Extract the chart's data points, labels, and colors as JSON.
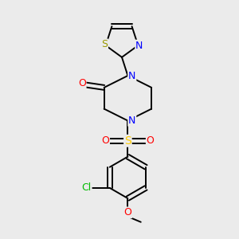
{
  "background_color": "#ebebeb",
  "bond_color": "#000000",
  "atom_colors": {
    "N": "#0000ff",
    "O": "#ff0000",
    "S_thiazole": "#999900",
    "S_sulfonyl": "#ffcc00",
    "Cl": "#00bb00",
    "C": "#000000"
  },
  "font_size": 8.5,
  "fig_width": 3.0,
  "fig_height": 3.0,
  "xlim": [
    0,
    10
  ],
  "ylim": [
    0,
    10
  ]
}
